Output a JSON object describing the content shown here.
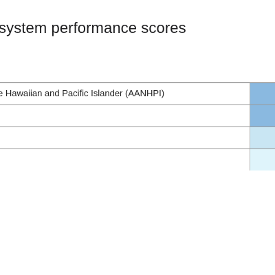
{
  "title": "system performance scores",
  "rows": [
    {
      "label": "e Hawaiian and Pacific Islander (AANHPI)",
      "cell_color": "#8ab9e0"
    },
    {
      "label": "",
      "cell_color": "#8ab9e0"
    },
    {
      "label": "",
      "cell_color": "#c9e6f3"
    },
    {
      "label": "",
      "cell_color": "#dff4fb"
    }
  ]
}
